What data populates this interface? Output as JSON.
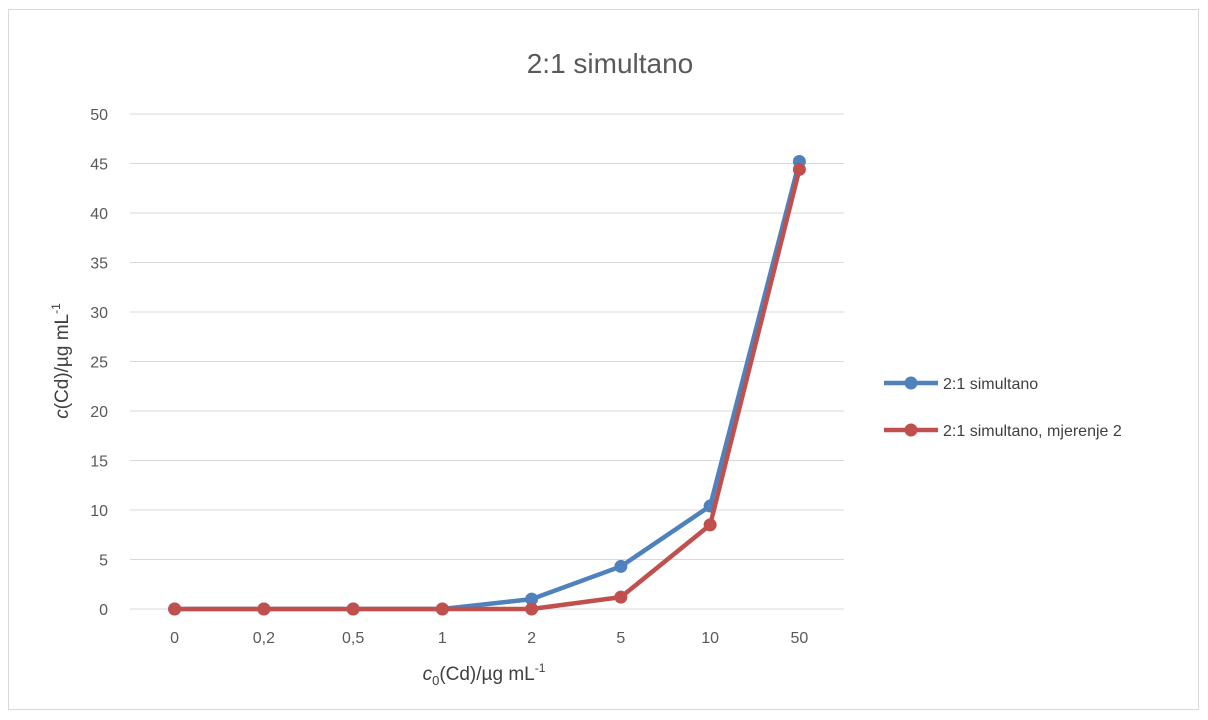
{
  "chart_data": {
    "type": "line",
    "title": "2:1 simultano",
    "xlabel": {
      "symbol": "c",
      "sub": "0",
      "text": "(Cd)/µg mL",
      "sup": "-1"
    },
    "ylabel": {
      "symbol": "c",
      "text": "(Cd)/µg mL",
      "sup": "-1"
    },
    "categories": [
      "0",
      "0,2",
      "0,5",
      "1",
      "2",
      "5",
      "10",
      "50"
    ],
    "ylim": [
      0,
      50
    ],
    "yticks": [
      0,
      5,
      10,
      15,
      20,
      25,
      30,
      35,
      40,
      45,
      50
    ],
    "grid": true,
    "legend_position": "right",
    "series": [
      {
        "name": "2:1 simultano",
        "color": "#4f81bd",
        "values": [
          0,
          0,
          0,
          0,
          1.0,
          4.3,
          10.4,
          45.2
        ]
      },
      {
        "name": "2:1 simultano, mjerenje 2",
        "color": "#c0504d",
        "values": [
          0,
          0,
          0,
          0,
          0,
          1.2,
          8.5,
          44.4
        ]
      }
    ]
  }
}
